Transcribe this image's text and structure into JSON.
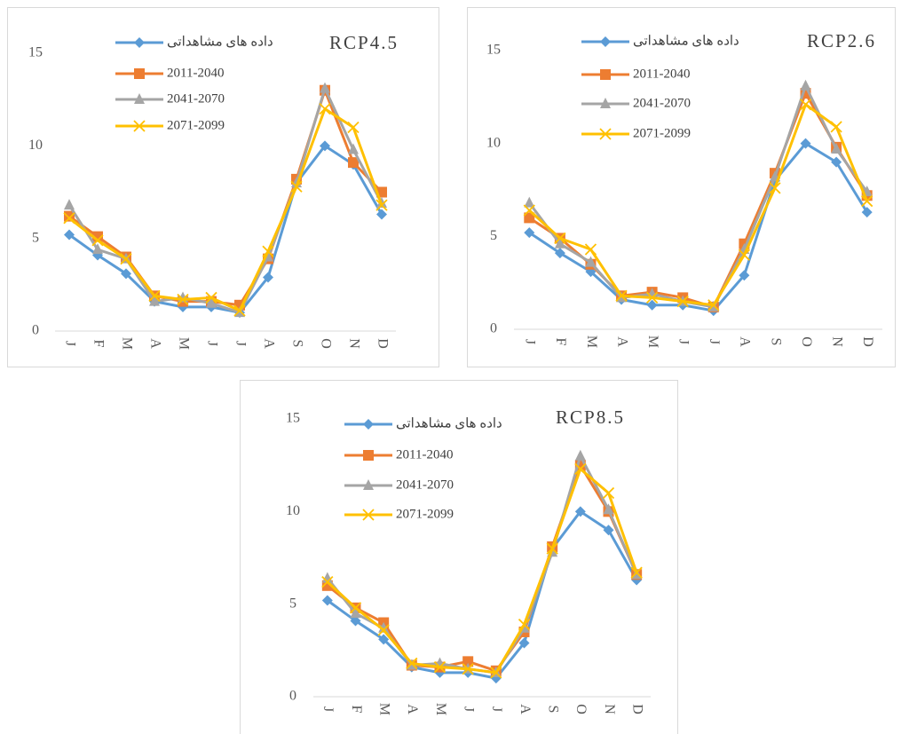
{
  "chart_data": [
    {
      "type": "line",
      "annotation": "RCP4.5",
      "categories": [
        "J",
        "F",
        "M",
        "A",
        "M",
        "J",
        "J",
        "A",
        "S",
        "O",
        "N",
        "D"
      ],
      "ylim": [
        0,
        15
      ],
      "yticks": [
        0,
        5,
        10,
        15
      ],
      "series": [
        {
          "name": "داده های مشاهداتی",
          "color": "#5b9bd5",
          "marker": "diamond",
          "values": [
            5.2,
            4.1,
            3.1,
            1.6,
            1.3,
            1.3,
            1.0,
            2.9,
            8.0,
            10.0,
            9.0,
            6.3
          ]
        },
        {
          "name": "2011-2040",
          "color": "#ed7d31",
          "marker": "square",
          "values": [
            6.2,
            5.1,
            4.0,
            1.9,
            1.6,
            1.6,
            1.4,
            3.9,
            8.2,
            13.0,
            9.1,
            7.5
          ]
        },
        {
          "name": "2041-2070",
          "color": "#a5a5a5",
          "marker": "triangle",
          "values": [
            6.8,
            4.4,
            3.9,
            1.6,
            1.8,
            1.5,
            1.0,
            4.0,
            8.0,
            13.1,
            9.8,
            6.9
          ]
        },
        {
          "name": "2071-2099",
          "color": "#ffc000",
          "marker": "x",
          "values": [
            6.1,
            4.9,
            3.9,
            1.9,
            1.7,
            1.8,
            1.1,
            4.3,
            7.8,
            12.0,
            11.0,
            6.8
          ]
        }
      ]
    },
    {
      "type": "line",
      "annotation": "RCP2.6",
      "categories": [
        "J",
        "F",
        "M",
        "A",
        "M",
        "J",
        "J",
        "A",
        "S",
        "O",
        "N",
        "D"
      ],
      "ylim": [
        0,
        15
      ],
      "yticks": [
        0,
        5,
        10,
        15
      ],
      "series": [
        {
          "name": "داده های مشاهداتی",
          "color": "#5b9bd5",
          "marker": "diamond",
          "values": [
            5.2,
            4.1,
            3.1,
            1.6,
            1.3,
            1.3,
            1.0,
            2.9,
            8.0,
            10.0,
            9.0,
            6.3
          ]
        },
        {
          "name": "2011-2040",
          "color": "#ed7d31",
          "marker": "square",
          "values": [
            6.0,
            4.9,
            3.5,
            1.8,
            2.0,
            1.7,
            1.2,
            4.6,
            8.4,
            12.7,
            9.8,
            7.2
          ]
        },
        {
          "name": "2041-2070",
          "color": "#a5a5a5",
          "marker": "triangle",
          "values": [
            6.8,
            4.6,
            3.6,
            1.7,
            1.9,
            1.5,
            1.2,
            4.3,
            8.2,
            13.1,
            9.7,
            7.4
          ]
        },
        {
          "name": "2071-2099",
          "color": "#ffc000",
          "marker": "x",
          "values": [
            6.4,
            4.9,
            4.3,
            1.8,
            1.7,
            1.5,
            1.3,
            4.0,
            7.6,
            12.1,
            10.9,
            6.9
          ]
        }
      ]
    },
    {
      "type": "line",
      "annotation": "RCP8.5",
      "categories": [
        "J",
        "F",
        "M",
        "A",
        "M",
        "J",
        "J",
        "A",
        "S",
        "O",
        "N",
        "D"
      ],
      "ylim": [
        0,
        15
      ],
      "yticks": [
        0,
        5,
        10,
        15
      ],
      "series": [
        {
          "name": "داده های مشاهداتی",
          "color": "#5b9bd5",
          "marker": "diamond",
          "values": [
            5.2,
            4.1,
            3.1,
            1.6,
            1.3,
            1.3,
            1.0,
            2.9,
            8.0,
            10.0,
            9.0,
            6.3
          ]
        },
        {
          "name": "2011-2040",
          "color": "#ed7d31",
          "marker": "square",
          "values": [
            6.0,
            4.8,
            4.0,
            1.7,
            1.6,
            1.9,
            1.4,
            3.5,
            8.1,
            12.5,
            10.0,
            6.6
          ]
        },
        {
          "name": "2041-2070",
          "color": "#a5a5a5",
          "marker": "triangle",
          "values": [
            6.4,
            4.5,
            3.7,
            1.7,
            1.8,
            1.5,
            1.3,
            3.7,
            7.8,
            13.0,
            10.1,
            6.6
          ]
        },
        {
          "name": "2071-2099",
          "color": "#ffc000",
          "marker": "x",
          "values": [
            6.2,
            4.8,
            3.6,
            1.8,
            1.6,
            1.5,
            1.3,
            3.9,
            8.0,
            12.3,
            11.0,
            6.7
          ]
        }
      ]
    }
  ]
}
